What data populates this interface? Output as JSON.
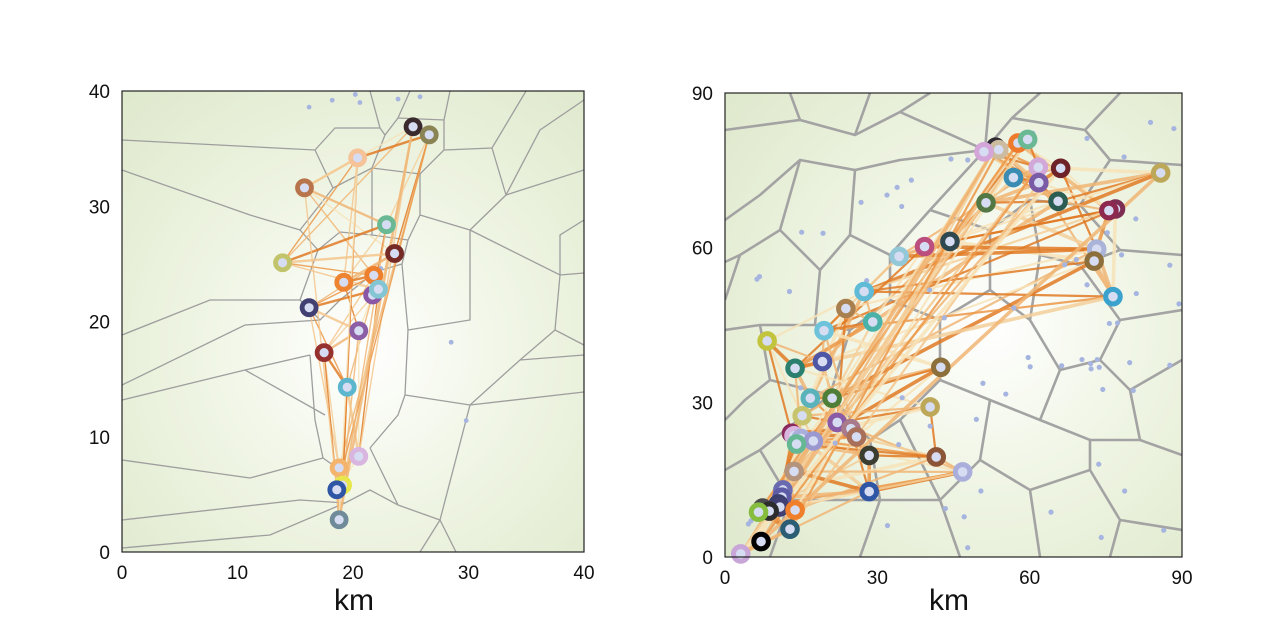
{
  "chart_data": [
    {
      "type": "scatter",
      "title": "",
      "xlabel": "km",
      "ylabel": "",
      "xlim": [
        0,
        40
      ],
      "ylim": [
        0,
        40
      ],
      "xticks": [
        "0",
        "10",
        "20",
        "30",
        "40"
      ],
      "yticks": [
        "0",
        "10",
        "20",
        "30",
        "40"
      ],
      "background_points": [
        [
          16.2,
          38.6
        ],
        [
          18.2,
          39.2
        ],
        [
          20.2,
          39.7
        ],
        [
          20.6,
          39.0
        ],
        [
          23.9,
          39.3
        ],
        [
          25.8,
          39.5
        ],
        [
          22.0,
          22.4
        ],
        [
          22.8,
          22.8
        ],
        [
          22.4,
          24.6
        ],
        [
          28.5,
          18.2
        ],
        [
          29.8,
          11.4
        ]
      ],
      "sites": [
        {
          "x": 25.2,
          "y": 36.9,
          "color": "#3a2a2e"
        },
        {
          "x": 26.6,
          "y": 36.2,
          "color": "#8a8455"
        },
        {
          "x": 20.4,
          "y": 34.2,
          "color": "#f6c298"
        },
        {
          "x": 15.8,
          "y": 31.6,
          "color": "#b8744a"
        },
        {
          "x": 22.9,
          "y": 28.4,
          "color": "#6ab994"
        },
        {
          "x": 13.9,
          "y": 25.1,
          "color": "#c2c46c"
        },
        {
          "x": 23.6,
          "y": 25.9,
          "color": "#762a26"
        },
        {
          "x": 19.2,
          "y": 23.4,
          "color": "#ee8432"
        },
        {
          "x": 21.8,
          "y": 24.0,
          "color": "#ee7f2d"
        },
        {
          "x": 21.7,
          "y": 22.3,
          "color": "#8a57a6"
        },
        {
          "x": 22.2,
          "y": 22.8,
          "color": "#84c5d4"
        },
        {
          "x": 16.2,
          "y": 21.2,
          "color": "#423f72"
        },
        {
          "x": 20.5,
          "y": 19.2,
          "color": "#8b5ea6"
        },
        {
          "x": 17.5,
          "y": 17.3,
          "color": "#96312e"
        },
        {
          "x": 19.5,
          "y": 14.3,
          "color": "#5cb6ce"
        },
        {
          "x": 20.5,
          "y": 8.3,
          "color": "#d9b6df"
        },
        {
          "x": 18.8,
          "y": 7.3,
          "color": "#f4b46c"
        },
        {
          "x": 19.1,
          "y": 5.8,
          "color": "#e7e74c"
        },
        {
          "x": 18.6,
          "y": 5.4,
          "color": "#2f55a5"
        },
        {
          "x": 18.8,
          "y": 2.8,
          "color": "#6f8a98"
        }
      ]
    },
    {
      "type": "scatter",
      "title": "",
      "xlabel": "km",
      "ylabel": "",
      "xlim": [
        0,
        90
      ],
      "ylim": [
        0,
        90
      ],
      "xticks": [
        "0",
        "30",
        "60",
        "90"
      ],
      "yticks": [
        "0",
        "30",
        "60",
        "90"
      ],
      "background_points": [
        [
          83.8,
          84.3
        ],
        [
          88.4,
          83.1
        ],
        [
          71.3,
          81.2
        ],
        [
          60.6,
          82.2
        ],
        [
          78.6,
          77.6
        ],
        [
          44.5,
          77.2
        ],
        [
          47.8,
          77.0
        ],
        [
          36.7,
          73.1
        ],
        [
          33.9,
          71.7
        ],
        [
          31.9,
          70.2
        ],
        [
          34.8,
          68.0
        ],
        [
          26.8,
          68.8
        ],
        [
          80.9,
          65.6
        ],
        [
          75.3,
          62.9
        ],
        [
          69.2,
          57.7
        ],
        [
          78.1,
          58.6
        ],
        [
          87.6,
          56.6
        ],
        [
          19.3,
          62.8
        ],
        [
          15.1,
          63.0
        ],
        [
          6.3,
          53.9
        ],
        [
          6.8,
          54.4
        ],
        [
          12.7,
          51.5
        ],
        [
          27.9,
          53.6
        ],
        [
          40.3,
          51.8
        ],
        [
          66.9,
          56.7
        ],
        [
          71.3,
          52.8
        ],
        [
          81.0,
          51.1
        ],
        [
          89.4,
          49.1
        ],
        [
          77.3,
          45.4
        ],
        [
          75.7,
          45.3
        ],
        [
          56.9,
          48.3
        ],
        [
          43.2,
          46.4
        ],
        [
          59.7,
          38.7
        ],
        [
          66.3,
          37.1
        ],
        [
          70.3,
          38.3
        ],
        [
          73.3,
          38.3
        ],
        [
          72.0,
          37.5
        ],
        [
          72.1,
          36.5
        ],
        [
          73.7,
          36.8
        ],
        [
          79.7,
          37.7
        ],
        [
          87.6,
          37.2
        ],
        [
          60.1,
          36.9
        ],
        [
          74.4,
          32.5
        ],
        [
          55.3,
          31.6
        ],
        [
          50.8,
          33.7
        ],
        [
          80.4,
          32.3
        ],
        [
          49.5,
          26.7
        ],
        [
          40.4,
          25.4
        ],
        [
          34.9,
          30.9
        ],
        [
          14.3,
          35.4
        ],
        [
          14.9,
          32.8
        ],
        [
          34.2,
          21.8
        ],
        [
          28.0,
          18.7
        ],
        [
          21.7,
          22.1
        ],
        [
          73.6,
          18.0
        ],
        [
          78.7,
          12.8
        ],
        [
          50.4,
          12.8
        ],
        [
          43.4,
          9.4
        ],
        [
          47.1,
          7.8
        ],
        [
          64.2,
          8.7
        ],
        [
          74.1,
          3.8
        ],
        [
          86.4,
          5.2
        ],
        [
          32.0,
          6.1
        ],
        [
          47.8,
          1.8
        ],
        [
          4.6,
          6.4
        ],
        [
          5.1,
          7.0
        ],
        [
          9.9,
          9.6
        ]
      ],
      "sites": [
        {
          "x": 53.3,
          "y": 79.5,
          "color": "#2f2a32"
        },
        {
          "x": 53.9,
          "y": 79.0,
          "color": "#cdbba0"
        },
        {
          "x": 57.7,
          "y": 80.3,
          "color": "#ee7a2c"
        },
        {
          "x": 59.6,
          "y": 81.0,
          "color": "#6ab994"
        },
        {
          "x": 51.0,
          "y": 78.6,
          "color": "#d4a5d9"
        },
        {
          "x": 61.7,
          "y": 75.6,
          "color": "#d2a8d8"
        },
        {
          "x": 66.1,
          "y": 75.4,
          "color": "#6e2228"
        },
        {
          "x": 56.8,
          "y": 73.6,
          "color": "#3a8cb2"
        },
        {
          "x": 61.8,
          "y": 72.6,
          "color": "#7a5ba6"
        },
        {
          "x": 85.8,
          "y": 74.5,
          "color": "#bda859"
        },
        {
          "x": 51.4,
          "y": 68.7,
          "color": "#547843"
        },
        {
          "x": 65.6,
          "y": 69.0,
          "color": "#2b5d52"
        },
        {
          "x": 76.9,
          "y": 67.5,
          "color": "#7d2f53"
        },
        {
          "x": 75.6,
          "y": 67.2,
          "color": "#8d284f"
        },
        {
          "x": 44.3,
          "y": 61.2,
          "color": "#2f484f"
        },
        {
          "x": 39.3,
          "y": 60.2,
          "color": "#bb4e7f"
        },
        {
          "x": 34.3,
          "y": 58.3,
          "color": "#93c8d8"
        },
        {
          "x": 73.2,
          "y": 59.7,
          "color": "#aab3d8"
        },
        {
          "x": 72.7,
          "y": 57.4,
          "color": "#8c6f3a"
        },
        {
          "x": 76.4,
          "y": 50.5,
          "color": "#3aa2cc"
        },
        {
          "x": 27.4,
          "y": 51.5,
          "color": "#60bcd6"
        },
        {
          "x": 23.8,
          "y": 48.2,
          "color": "#a88050"
        },
        {
          "x": 29.1,
          "y": 45.6,
          "color": "#4ab2a8"
        },
        {
          "x": 19.5,
          "y": 43.9,
          "color": "#6ec3db"
        },
        {
          "x": 8.3,
          "y": 41.9,
          "color": "#c2c43e"
        },
        {
          "x": 19.2,
          "y": 37.9,
          "color": "#4e57a6"
        },
        {
          "x": 13.8,
          "y": 36.6,
          "color": "#2b7f6e"
        },
        {
          "x": 42.5,
          "y": 36.8,
          "color": "#8c6f3a"
        },
        {
          "x": 16.8,
          "y": 30.8,
          "color": "#5ab2ba"
        },
        {
          "x": 21.1,
          "y": 30.8,
          "color": "#4e7e37"
        },
        {
          "x": 40.4,
          "y": 29.1,
          "color": "#bda859"
        },
        {
          "x": 15.2,
          "y": 27.4,
          "color": "#c8c46e"
        },
        {
          "x": 22.1,
          "y": 26.1,
          "color": "#8a5ba6"
        },
        {
          "x": 24.8,
          "y": 24.9,
          "color": "#a87a8a"
        },
        {
          "x": 25.9,
          "y": 23.3,
          "color": "#a8705a"
        },
        {
          "x": 13.1,
          "y": 24.0,
          "color": "#8b2b5d"
        },
        {
          "x": 13.6,
          "y": 23.5,
          "color": "#d9b6df"
        },
        {
          "x": 15.0,
          "y": 23.0,
          "color": "#a9aedb"
        },
        {
          "x": 17.4,
          "y": 22.5,
          "color": "#9b98cf"
        },
        {
          "x": 14.1,
          "y": 21.9,
          "color": "#66b894"
        },
        {
          "x": 28.4,
          "y": 19.7,
          "color": "#3b3d31"
        },
        {
          "x": 41.6,
          "y": 19.4,
          "color": "#8c5537"
        },
        {
          "x": 13.6,
          "y": 16.6,
          "color": "#b4947c"
        },
        {
          "x": 46.8,
          "y": 16.5,
          "color": "#a9aedb"
        },
        {
          "x": 28.4,
          "y": 12.7,
          "color": "#2f55a5"
        },
        {
          "x": 11.4,
          "y": 13.0,
          "color": "#6a6ab0"
        },
        {
          "x": 11.2,
          "y": 11.6,
          "color": "#5e5ba6"
        },
        {
          "x": 10.5,
          "y": 10.3,
          "color": "#3a3f6e"
        },
        {
          "x": 10.8,
          "y": 9.7,
          "color": "#423f72"
        },
        {
          "x": 7.4,
          "y": 9.5,
          "color": "#4a484a"
        },
        {
          "x": 8.7,
          "y": 8.9,
          "color": "#2c2c2c"
        },
        {
          "x": 6.6,
          "y": 8.7,
          "color": "#86bd3e"
        },
        {
          "x": 13.8,
          "y": 9.1,
          "color": "#ef7f2b"
        },
        {
          "x": 12.8,
          "y": 5.4,
          "color": "#2b5d74"
        },
        {
          "x": 7.1,
          "y": 3.0,
          "color": "#000000"
        },
        {
          "x": 3.1,
          "y": 0.6,
          "color": "#c8a7d8"
        }
      ]
    }
  ]
}
